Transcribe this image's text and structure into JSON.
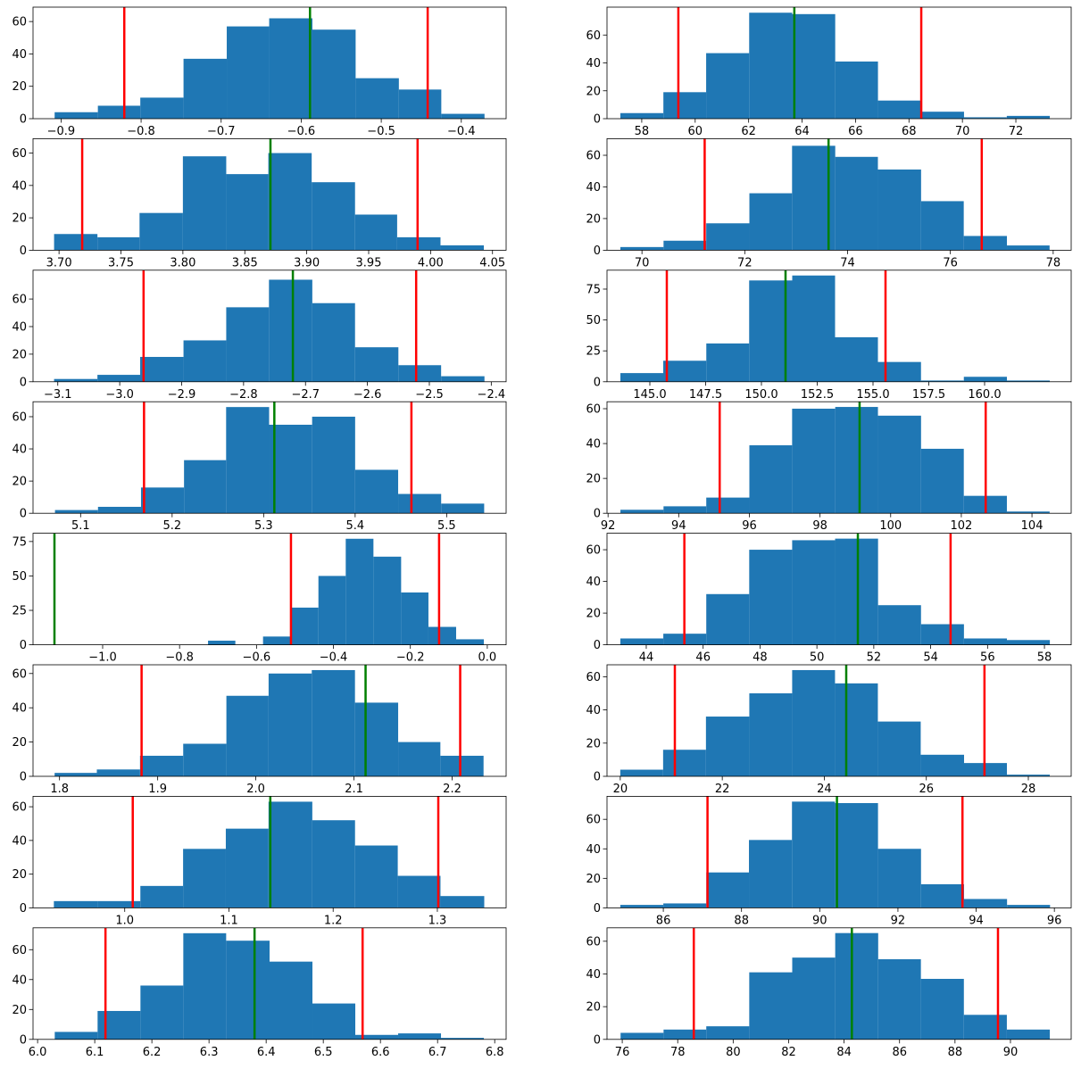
{
  "chart_data": [
    {
      "type": "histogram",
      "color": "#1f77b4",
      "bins": [
        -0.908,
        -0.854,
        -0.801,
        -0.747,
        -0.693,
        -0.64,
        -0.586,
        -0.532,
        -0.478,
        -0.425,
        -0.371
      ],
      "counts": [
        4,
        8,
        13,
        37,
        57,
        62,
        55,
        25,
        18,
        3
      ],
      "xlim": [
        -0.935,
        -0.344
      ],
      "ylim": [
        0,
        68.9
      ],
      "xticks": [
        {
          "value": -0.9,
          "label": "−0.9"
        },
        {
          "value": -0.8,
          "label": "−0.8"
        },
        {
          "value": -0.7,
          "label": "−0.7"
        },
        {
          "value": -0.6,
          "label": "−0.6"
        },
        {
          "value": -0.5,
          "label": "−0.5"
        },
        {
          "value": -0.4,
          "label": "−0.4"
        }
      ],
      "yticks": [
        0,
        20,
        40,
        60
      ],
      "vlines": [
        {
          "x": -0.821,
          "color": "#ff0000"
        },
        {
          "x": -0.442,
          "color": "#ff0000"
        },
        {
          "x": -0.589,
          "color": "#008000"
        }
      ]
    },
    {
      "type": "histogram",
      "color": "#1f77b4",
      "bins": [
        57.2,
        58.81,
        60.41,
        62.02,
        63.63,
        65.24,
        66.84,
        68.45,
        70.06,
        71.66,
        73.27
      ],
      "counts": [
        4,
        19,
        47,
        76,
        75,
        41,
        13,
        5,
        1,
        2
      ],
      "xlim": [
        56.7,
        74.07
      ],
      "ylim": [
        0,
        80
      ],
      "xticks": [
        58,
        60,
        62,
        64,
        66,
        68,
        70,
        72
      ],
      "yticks": [
        0,
        20,
        40,
        60
      ],
      "vlines": [
        {
          "x": 59.37,
          "color": "#ff0000"
        },
        {
          "x": 68.46,
          "color": "#ff0000"
        },
        {
          "x": 63.71,
          "color": "#008000"
        }
      ]
    },
    {
      "type": "histogram",
      "color": "#1f77b4",
      "bins": [
        3.696,
        3.731,
        3.765,
        3.8,
        3.835,
        3.869,
        3.904,
        3.939,
        3.973,
        4.008,
        4.043
      ],
      "counts": [
        10,
        8,
        23,
        58,
        47,
        60,
        42,
        22,
        8,
        3
      ],
      "xlim": [
        3.679,
        4.061
      ],
      "ylim": [
        0,
        68.9
      ],
      "xticks": [
        {
          "value": 3.7,
          "label": "3.70"
        },
        3.75,
        {
          "value": 3.8,
          "label": "3.80"
        },
        3.85,
        {
          "value": 3.9,
          "label": "3.90"
        },
        3.95,
        {
          "value": 4.0,
          "label": "4.00"
        },
        4.05
      ],
      "yticks": [
        0,
        20,
        40,
        60
      ],
      "vlines": [
        {
          "x": 3.7187,
          "color": "#ff0000"
        },
        {
          "x": 3.9895,
          "color": "#ff0000"
        },
        {
          "x": 3.8707,
          "color": "#008000"
        }
      ]
    },
    {
      "type": "histogram",
      "color": "#1f77b4",
      "bins": [
        69.58,
        70.42,
        71.25,
        72.09,
        72.92,
        73.76,
        74.59,
        75.43,
        76.26,
        77.1,
        77.93
      ],
      "counts": [
        2,
        6,
        17,
        36,
        66,
        59,
        51,
        31,
        9,
        3
      ],
      "xlim": [
        69.32,
        78.35
      ],
      "ylim": [
        0,
        70.5
      ],
      "xticks": [
        70,
        72,
        74,
        76,
        78
      ],
      "yticks": [
        0,
        20,
        40,
        60
      ],
      "vlines": [
        {
          "x": 71.22,
          "color": "#ff0000"
        },
        {
          "x": 76.61,
          "color": "#ff0000"
        },
        {
          "x": 73.63,
          "color": "#008000"
        }
      ]
    },
    {
      "type": "histogram",
      "color": "#1f77b4",
      "bins": [
        -3.106,
        -3.036,
        -2.967,
        -2.897,
        -2.828,
        -2.759,
        -2.689,
        -2.62,
        -2.55,
        -2.481,
        -2.411
      ],
      "counts": [
        2,
        5,
        18,
        30,
        54,
        74,
        57,
        25,
        12,
        4
      ],
      "xlim": [
        -3.14,
        -2.376
      ],
      "ylim": [
        0,
        80.9
      ],
      "xticks": [
        {
          "value": -3.1,
          "label": "−3.1"
        },
        {
          "value": -3.0,
          "label": "−3.0"
        },
        {
          "value": -2.9,
          "label": "−2.9"
        },
        {
          "value": -2.8,
          "label": "−2.8"
        },
        {
          "value": -2.7,
          "label": "−2.7"
        },
        {
          "value": -2.6,
          "label": "−2.6"
        },
        {
          "value": -2.5,
          "label": "−2.5"
        },
        {
          "value": -2.4,
          "label": "−2.4"
        }
      ],
      "yticks": [
        0,
        20,
        40,
        60
      ],
      "vlines": [
        {
          "x": -2.9615,
          "color": "#ff0000"
        },
        {
          "x": -2.5213,
          "color": "#ff0000"
        },
        {
          "x": -2.7204,
          "color": "#008000"
        }
      ]
    },
    {
      "type": "histogram",
      "color": "#1f77b4",
      "bins": [
        143.68,
        145.6,
        147.53,
        149.45,
        151.38,
        153.3,
        155.22,
        157.15,
        159.07,
        161.0,
        162.92
      ],
      "counts": [
        7,
        17,
        31,
        82,
        86,
        36,
        16,
        1,
        4,
        1
      ],
      "xlim": [
        143.08,
        163.88
      ],
      "ylim": [
        0,
        90.3
      ],
      "xticks": [
        {
          "value": 145,
          "label": "145.0"
        },
        147.5,
        {
          "value": 150,
          "label": "150.0"
        },
        152.5,
        {
          "value": 155,
          "label": "155.0"
        },
        157.5,
        {
          "value": 160,
          "label": "160.0"
        }
      ],
      "yticks": [
        0,
        25,
        50,
        75
      ],
      "vlines": [
        {
          "x": 145.76,
          "color": "#ff0000"
        },
        {
          "x": 155.56,
          "color": "#ff0000"
        },
        {
          "x": 151.08,
          "color": "#008000"
        }
      ]
    },
    {
      "type": "histogram",
      "color": "#1f77b4",
      "bins": [
        5.072,
        5.119,
        5.166,
        5.213,
        5.259,
        5.306,
        5.353,
        5.4,
        5.447,
        5.494,
        5.541
      ],
      "counts": [
        2,
        4,
        16,
        33,
        66,
        55,
        60,
        27,
        12,
        6
      ],
      "xlim": [
        5.048,
        5.565
      ],
      "ylim": [
        0,
        69.3
      ],
      "xticks": [
        5.1,
        5.2,
        5.3,
        5.4,
        5.5
      ],
      "yticks": [
        0,
        20,
        40,
        60
      ],
      "vlines": [
        {
          "x": 5.1693,
          "color": "#ff0000"
        },
        {
          "x": 5.4615,
          "color": "#ff0000"
        },
        {
          "x": 5.3117,
          "color": "#008000"
        }
      ]
    },
    {
      "type": "histogram",
      "color": "#1f77b4",
      "bins": [
        92.35,
        93.57,
        94.78,
        96.0,
        97.21,
        98.43,
        99.64,
        100.86,
        102.07,
        103.29,
        104.5
      ],
      "counts": [
        2,
        4,
        9,
        39,
        60,
        61,
        56,
        37,
        10,
        1
      ],
      "xlim": [
        91.97,
        105.11
      ],
      "ylim": [
        0,
        64
      ],
      "xticks": [
        92,
        94,
        96,
        98,
        100,
        102,
        104
      ],
      "yticks": [
        0,
        20,
        40,
        60
      ],
      "vlines": [
        {
          "x": 95.16,
          "color": "#ff0000"
        },
        {
          "x": 102.69,
          "color": "#ff0000"
        },
        {
          "x": 99.12,
          "color": "#008000"
        }
      ]
    },
    {
      "type": "histogram",
      "color": "#1f77b4",
      "bins": [
        -0.726,
        -0.655,
        -0.583,
        -0.511,
        -0.439,
        -0.368,
        -0.296,
        -0.224,
        -0.153,
        -0.081,
        -0.009
      ],
      "counts": [
        3,
        0,
        6,
        27,
        50,
        77,
        64,
        38,
        13,
        4
      ],
      "xlim": [
        -1.181,
        0.049
      ],
      "ylim": [
        0,
        81
      ],
      "xticks": [
        {
          "value": -1.0,
          "label": "−1.0"
        },
        {
          "value": -0.8,
          "label": "−0.8"
        },
        {
          "value": -0.6,
          "label": "−0.6"
        },
        {
          "value": -0.4,
          "label": "−0.4"
        },
        {
          "value": -0.2,
          "label": "−0.2"
        },
        {
          "value": 0,
          "label": "0.0"
        }
      ],
      "yticks": [
        0,
        25,
        50,
        75
      ],
      "vlines": [
        {
          "x": -0.5104,
          "color": "#ff0000"
        },
        {
          "x": -0.1253,
          "color": "#ff0000"
        },
        {
          "x": -1.1253,
          "color": "#008000"
        }
      ]
    },
    {
      "type": "histogram",
      "color": "#1f77b4",
      "bins": [
        43.09,
        44.6,
        46.11,
        47.62,
        49.13,
        50.64,
        52.15,
        53.66,
        55.17,
        56.68,
        58.19
      ],
      "counts": [
        4,
        7,
        32,
        60,
        66,
        67,
        25,
        13,
        4,
        3
      ],
      "xlim": [
        42.62,
        58.94
      ],
      "ylim": [
        0,
        70.4
      ],
      "xticks": [
        44,
        46,
        48,
        50,
        52,
        54,
        56,
        58
      ],
      "yticks": [
        0,
        20,
        40,
        60
      ],
      "vlines": [
        {
          "x": 45.34,
          "color": "#ff0000"
        },
        {
          "x": 54.7,
          "color": "#ff0000"
        },
        {
          "x": 51.44,
          "color": "#008000"
        }
      ]
    },
    {
      "type": "histogram",
      "color": "#1f77b4",
      "bins": [
        1.795,
        1.838,
        1.882,
        1.926,
        1.97,
        2.013,
        2.057,
        2.101,
        2.145,
        2.188,
        2.232
      ],
      "counts": [
        2,
        4,
        12,
        19,
        47,
        60,
        62,
        43,
        20,
        12
      ],
      "xlim": [
        1.773,
        2.255
      ],
      "ylim": [
        0,
        65.1
      ],
      "xticks": [
        1.8,
        1.9,
        {
          "value": 2.0,
          "label": "2.0"
        },
        2.1,
        2.2
      ],
      "yticks": [
        0,
        20,
        40,
        60
      ],
      "vlines": [
        {
          "x": 1.8836,
          "color": "#ff0000"
        },
        {
          "x": 2.2082,
          "color": "#ff0000"
        },
        {
          "x": 2.1118,
          "color": "#008000"
        }
      ]
    },
    {
      "type": "histogram",
      "color": "#1f77b4",
      "bins": [
        20.0,
        20.84,
        21.68,
        22.53,
        23.37,
        24.21,
        25.05,
        25.89,
        26.74,
        27.58,
        28.42
      ],
      "counts": [
        4,
        16,
        36,
        50,
        64,
        56,
        33,
        13,
        8,
        1
      ],
      "xlim": [
        19.74,
        28.84
      ],
      "ylim": [
        0,
        67.2
      ],
      "xticks": [
        20,
        22,
        24,
        26,
        28
      ],
      "yticks": [
        0,
        20,
        40,
        60
      ],
      "vlines": [
        {
          "x": 21.07,
          "color": "#ff0000"
        },
        {
          "x": 27.14,
          "color": "#ff0000"
        },
        {
          "x": 24.43,
          "color": "#008000"
        }
      ]
    },
    {
      "type": "histogram",
      "color": "#1f77b4",
      "bins": [
        0.932,
        0.974,
        1.015,
        1.056,
        1.097,
        1.138,
        1.18,
        1.221,
        1.262,
        1.303,
        1.345
      ],
      "counts": [
        4,
        4,
        13,
        35,
        47,
        63,
        52,
        37,
        19,
        7
      ],
      "xlim": [
        0.912,
        1.366
      ],
      "ylim": [
        0,
        66.2
      ],
      "xticks": [
        {
          "value": 1.0,
          "label": "1.0"
        },
        1.1,
        1.2,
        1.3
      ],
      "yticks": [
        0,
        20,
        40,
        60
      ],
      "vlines": [
        {
          "x": 1.0077,
          "color": "#ff0000"
        },
        {
          "x": 1.3009,
          "color": "#ff0000"
        },
        {
          "x": 1.1397,
          "color": "#008000"
        }
      ]
    },
    {
      "type": "histogram",
      "color": "#1f77b4",
      "bins": [
        84.9,
        86.0,
        87.1,
        88.19,
        89.29,
        90.39,
        91.49,
        92.59,
        93.69,
        94.79,
        95.89
      ],
      "counts": [
        2,
        3,
        24,
        46,
        72,
        71,
        40,
        16,
        6,
        2
      ],
      "xlim": [
        84.56,
        96.43
      ],
      "ylim": [
        0,
        75.6
      ],
      "xticks": [
        86,
        88,
        90,
        92,
        94,
        96
      ],
      "yticks": [
        0,
        20,
        40,
        60
      ],
      "vlines": [
        {
          "x": 87.13,
          "color": "#ff0000"
        },
        {
          "x": 93.65,
          "color": "#ff0000"
        },
        {
          "x": 90.44,
          "color": "#008000"
        }
      ]
    },
    {
      "type": "histogram",
      "color": "#1f77b4",
      "bins": [
        6.03,
        6.105,
        6.18,
        6.255,
        6.33,
        6.406,
        6.481,
        6.556,
        6.631,
        6.706,
        6.781
      ],
      "counts": [
        5,
        19,
        36,
        71,
        66,
        52,
        24,
        3,
        4,
        1
      ],
      "xlim": [
        5.992,
        6.82
      ],
      "ylim": [
        0,
        74.6
      ],
      "xticks": [
        {
          "value": 6.0,
          "label": "6.0"
        },
        6.1,
        6.2,
        6.3,
        6.4,
        6.5,
        6.6,
        6.7,
        6.8
      ],
      "yticks": [
        0,
        20,
        40,
        60
      ],
      "vlines": [
        {
          "x": 6.1188,
          "color": "#ff0000"
        },
        {
          "x": 6.5688,
          "color": "#ff0000"
        },
        {
          "x": 6.3797,
          "color": "#008000"
        }
      ]
    },
    {
      "type": "histogram",
      "color": "#1f77b4",
      "bins": [
        75.94,
        77.49,
        79.03,
        80.58,
        82.13,
        83.68,
        85.23,
        86.77,
        88.32,
        89.87,
        91.42
      ],
      "counts": [
        4,
        6,
        8,
        41,
        50,
        65,
        49,
        37,
        15,
        6
      ],
      "xlim": [
        75.45,
        92.19
      ],
      "ylim": [
        0,
        68.2
      ],
      "xticks": [
        76,
        78,
        80,
        82,
        84,
        86,
        88,
        90
      ],
      "yticks": [
        0,
        20,
        40,
        60
      ],
      "vlines": [
        {
          "x": 78.58,
          "color": "#ff0000"
        },
        {
          "x": 89.55,
          "color": "#ff0000"
        },
        {
          "x": 84.28,
          "color": "#008000"
        }
      ]
    }
  ]
}
